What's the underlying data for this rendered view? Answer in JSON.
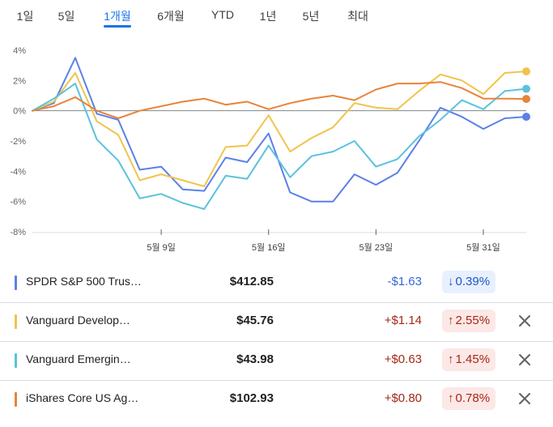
{
  "tabs": [
    {
      "label": "1일",
      "active": false
    },
    {
      "label": "5일",
      "active": false
    },
    {
      "label": "1개월",
      "active": true
    },
    {
      "label": "6개월",
      "active": false
    },
    {
      "label": "YTD",
      "active": false
    },
    {
      "label": "1년",
      "active": false
    },
    {
      "label": "5년",
      "active": false
    },
    {
      "label": "최대",
      "active": false
    }
  ],
  "chart_data": {
    "type": "line",
    "ylim": [
      -8,
      4
    ],
    "yticks": [
      "4%",
      "2%",
      "0%",
      "-2%",
      "-4%",
      "-6%",
      "-8%"
    ],
    "baseline": 0,
    "xtick_labels": [
      "5월 9일",
      "5월 16일",
      "5월 23일",
      "5월 31일"
    ],
    "xtick_index": [
      6,
      11,
      16,
      21
    ],
    "series": [
      {
        "name": "SPDR S&P 500 Trus…",
        "color": "#5b80e8",
        "values": [
          0,
          0.5,
          3.5,
          -0.2,
          -0.6,
          -3.9,
          -3.7,
          -5.2,
          -5.3,
          -3.1,
          -3.4,
          -1.5,
          -5.4,
          -6.0,
          -6.0,
          -4.2,
          -4.9,
          -4.1,
          -2.0,
          0.2,
          -0.4,
          -1.2,
          -0.5,
          -0.4
        ]
      },
      {
        "name": "Vanguard Develop…",
        "color": "#f0c44c",
        "values": [
          0,
          0.6,
          2.5,
          -0.7,
          -1.6,
          -4.6,
          -4.2,
          -4.6,
          -5.0,
          -2.4,
          -2.3,
          -0.3,
          -2.7,
          -1.8,
          -1.1,
          0.5,
          0.2,
          0.1,
          1.3,
          2.4,
          2.0,
          1.1,
          2.5,
          2.6
        ]
      },
      {
        "name": "Vanguard Emergin…",
        "color": "#5bc2dc",
        "values": [
          0,
          0.8,
          1.8,
          -1.9,
          -3.3,
          -5.8,
          -5.5,
          -6.1,
          -6.5,
          -4.3,
          -4.5,
          -2.3,
          -4.4,
          -3.0,
          -2.7,
          -2.0,
          -3.7,
          -3.2,
          -1.7,
          -0.6,
          0.7,
          0.1,
          1.3,
          1.45
        ]
      },
      {
        "name": "iShares Core US Ag…",
        "color": "#e8843b",
        "values": [
          0,
          0.3,
          0.9,
          0.0,
          -0.5,
          0.0,
          0.3,
          0.6,
          0.8,
          0.4,
          0.6,
          0.1,
          0.5,
          0.8,
          1.0,
          0.7,
          1.4,
          1.8,
          1.8,
          1.9,
          1.5,
          0.8,
          0.8,
          0.78
        ]
      }
    ]
  },
  "rows": [
    {
      "name": "SPDR S&P 500 Trus…",
      "price": "$412.85",
      "change": "-$1.63",
      "pct": "0.39%",
      "arrow": "↓",
      "direction": "down",
      "color": "#5b80e8",
      "change_color": "#3367d6",
      "pill_bg": "#e8f0fe",
      "pill_fg": "#1a56c4",
      "removable": false
    },
    {
      "name": "Vanguard Develop…",
      "price": "$45.76",
      "change": "+$1.14",
      "pct": "2.55%",
      "arrow": "↑",
      "direction": "up",
      "color": "#f0c44c",
      "change_color": "#a52714",
      "pill_bg": "#fce8e6",
      "pill_fg": "#a52714",
      "removable": true
    },
    {
      "name": "Vanguard Emergin…",
      "price": "$43.98",
      "change": "+$0.63",
      "pct": "1.45%",
      "arrow": "↑",
      "direction": "up",
      "color": "#5bc2dc",
      "change_color": "#a52714",
      "pill_bg": "#fce8e6",
      "pill_fg": "#a52714",
      "removable": true
    },
    {
      "name": "iShares Core US Ag…",
      "price": "$102.93",
      "change": "+$0.80",
      "pct": "0.78%",
      "arrow": "↑",
      "direction": "up",
      "color": "#e8843b",
      "change_color": "#a52714",
      "pill_bg": "#fce8e6",
      "pill_fg": "#a52714",
      "removable": true
    }
  ],
  "icons": {
    "remove": "close-icon",
    "down": "arrow-down-icon",
    "up": "arrow-up-icon"
  }
}
